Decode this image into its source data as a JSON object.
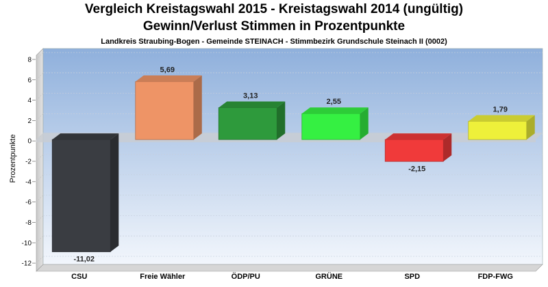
{
  "chart_data": {
    "type": "bar",
    "title": "Vergleich Kreistagswahl 2015 - Kreistagswahl 2014 (ungültig)",
    "title2": "Gewinn/Verlust Stimmen in Prozentpunkte",
    "subtitle": "Landkreis Straubing-Bogen - Gemeinde STEINACH - Stimmbezirk Grundschule Steinach II (0002)",
    "ylabel": "Prozentpunkte",
    "xlabel": "",
    "categories": [
      "CSU",
      "Freie Wähler",
      "ÖDP/PU",
      "GRÜNE",
      "SPD",
      "FDP-FWG"
    ],
    "values": [
      -11.02,
      5.69,
      3.13,
      2.55,
      -2.15,
      1.79
    ],
    "value_labels": [
      "-11,02",
      "5,69",
      "3,13",
      "2,55",
      "-2,15",
      "1,79"
    ],
    "colors": [
      "#3a3d42",
      "#ee9466",
      "#2e9a3c",
      "#35f042",
      "#f03a3a",
      "#eef03a"
    ],
    "yticks": [
      8,
      6,
      4,
      2,
      0,
      -2,
      -4,
      -6,
      -8,
      -10,
      -12
    ],
    "ylim": [
      -12.8,
      8.4
    ],
    "grid": true,
    "legend": "none"
  }
}
